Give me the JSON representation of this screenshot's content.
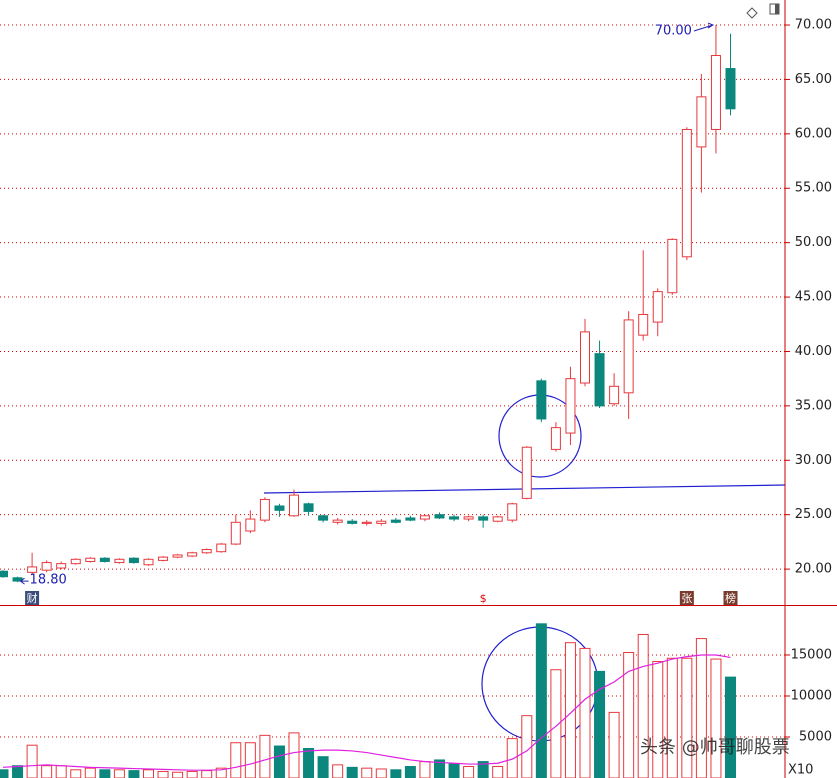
{
  "chart_data": [
    {
      "type": "candlestick",
      "open": [
        19.8,
        19.2,
        19.7,
        19.9,
        20.1,
        20.5,
        20.7,
        21.0,
        20.6,
        21.0,
        20.4,
        20.8,
        21.1,
        21.2,
        21.5,
        21.6,
        22.3,
        23.5,
        24.5,
        25.8,
        24.9,
        26.0,
        24.9,
        24.3,
        24.4,
        24.2,
        24.2,
        24.5,
        24.7,
        24.6,
        25.0,
        24.8,
        24.6,
        24.8,
        24.4,
        24.5,
        26.5,
        37.3,
        31.0,
        32.5,
        37.1,
        39.8,
        35.2,
        36.2,
        41.5,
        42.7,
        45.4,
        48.7,
        58.8,
        60.4,
        66.0
      ],
      "high": [
        19.9,
        19.3,
        21.5,
        20.8,
        20.7,
        21.0,
        21.1,
        21.1,
        21.0,
        21.1,
        21.0,
        21.2,
        21.4,
        21.6,
        21.9,
        22.4,
        25.0,
        25.4,
        26.6,
        26.0,
        27.3,
        26.1,
        25.0,
        24.7,
        24.6,
        24.5,
        24.6,
        24.7,
        24.9,
        25.0,
        25.2,
        25.0,
        24.9,
        25.0,
        24.9,
        26.1,
        31.3,
        37.5,
        33.5,
        38.6,
        43.0,
        41.0,
        38.0,
        43.7,
        49.3,
        45.8,
        50.4,
        60.6,
        65.5,
        70.0,
        69.2
      ],
      "low": [
        19.2,
        18.8,
        19.5,
        19.7,
        20.0,
        20.4,
        20.6,
        20.6,
        20.5,
        20.5,
        20.3,
        20.7,
        21.0,
        21.1,
        21.4,
        21.5,
        22.2,
        23.3,
        24.3,
        24.8,
        24.8,
        24.9,
        24.3,
        24.1,
        24.1,
        24.0,
        24.0,
        24.2,
        24.4,
        24.4,
        24.6,
        24.4,
        24.4,
        23.8,
        24.3,
        24.3,
        26.4,
        33.5,
        30.8,
        31.4,
        36.8,
        34.8,
        35.0,
        33.8,
        41.0,
        41.4,
        45.2,
        48.4,
        54.6,
        58.2,
        61.7
      ],
      "close": [
        19.3,
        18.9,
        20.2,
        20.6,
        20.5,
        20.9,
        21.0,
        20.7,
        20.9,
        20.6,
        20.9,
        21.1,
        21.3,
        21.5,
        21.8,
        22.3,
        24.3,
        24.6,
        26.4,
        25.4,
        26.8,
        25.3,
        24.5,
        24.5,
        24.2,
        24.3,
        24.4,
        24.3,
        24.5,
        24.9,
        24.7,
        24.6,
        24.8,
        24.5,
        24.8,
        26.0,
        31.2,
        33.8,
        33.0,
        37.5,
        41.8,
        35.0,
        36.8,
        42.9,
        43.4,
        45.5,
        50.3,
        60.4,
        63.4,
        67.2,
        62.3
      ],
      "events": [
        null,
        null,
        "财",
        null,
        null,
        null,
        null,
        null,
        null,
        null,
        null,
        null,
        null,
        null,
        null,
        null,
        null,
        null,
        null,
        null,
        null,
        null,
        null,
        null,
        null,
        null,
        null,
        null,
        null,
        null,
        null,
        null,
        null,
        "$",
        null,
        null,
        null,
        null,
        null,
        null,
        null,
        null,
        null,
        null,
        null,
        null,
        null,
        "张",
        null,
        null,
        "榜"
      ],
      "annotations": [
        {
          "value": 70.0,
          "label": "70.00"
        },
        {
          "value": 18.8,
          "label": "18.80"
        }
      ],
      "up_color": "#e8383d",
      "down_color": "#0b877d",
      "ylim": [
        16.7,
        72.3
      ],
      "yticks": [
        {
          "value": 20,
          "label": "20.00"
        },
        {
          "value": 25,
          "label": "25.00"
        },
        {
          "value": 30,
          "label": "30.00"
        },
        {
          "value": 35,
          "label": "35.00"
        },
        {
          "value": 40,
          "label": "40.00"
        },
        {
          "value": 45,
          "label": "45.00"
        },
        {
          "value": 50,
          "label": "50.00"
        },
        {
          "value": 55,
          "label": "55.00"
        },
        {
          "value": 60,
          "label": "60.00"
        },
        {
          "value": 65,
          "label": "65.00"
        },
        {
          "value": 70,
          "label": "70.00"
        }
      ],
      "grid": true
    },
    {
      "type": "volume",
      "values": [
        1000,
        1500,
        4000,
        1500,
        1500,
        1000,
        1200,
        1000,
        1000,
        900,
        1000,
        800,
        700,
        800,
        900,
        1200,
        4300,
        4300,
        5200,
        3900,
        5500,
        3600,
        2600,
        1600,
        1300,
        1200,
        1100,
        1000,
        1400,
        2000,
        2200,
        1700,
        1400,
        2000,
        1400,
        4800,
        7600,
        18800,
        13200,
        16500,
        15800,
        13000,
        8000,
        15300,
        17500,
        14200,
        14600,
        14600,
        17000,
        14500,
        12300
      ],
      "ma": {
        "color": "#e020e0",
        "values": [
          1300,
          1400,
          1500,
          1600,
          1500,
          1400,
          1300,
          1250,
          1200,
          1150,
          1100,
          1050,
          1000,
          950,
          950,
          1000,
          1300,
          1700,
          2200,
          2700,
          3100,
          3300,
          3400,
          3400,
          3300,
          3100,
          2800,
          2500,
          2200,
          2000,
          1900,
          1800,
          1700,
          1700,
          1800,
          2300,
          3300,
          4900,
          6300,
          7900,
          9600,
          10800,
          11700,
          13000,
          13600,
          14000,
          14500,
          14800,
          15000,
          15000,
          14700
        ]
      },
      "ylim": [
        0,
        20850
      ],
      "yticks": [
        5000,
        10000,
        15000
      ],
      "unit_label": "X10",
      "watermark": "头条 @帅哥聊股票",
      "grid": true
    }
  ]
}
